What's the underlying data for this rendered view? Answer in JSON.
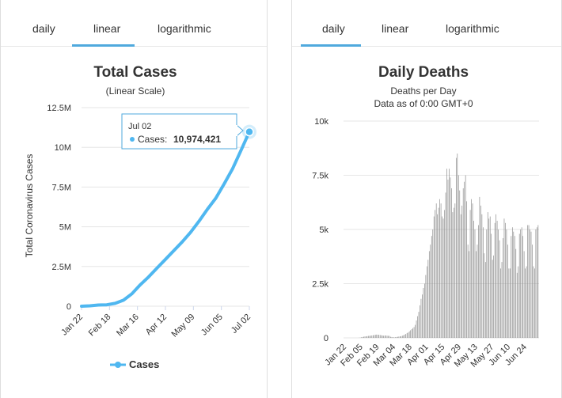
{
  "tabs_left": {
    "daily": "daily",
    "linear": "linear",
    "logarithmic": "logarithmic",
    "active": "linear"
  },
  "tabs_right": {
    "daily": "daily",
    "linear": "linear",
    "logarithmic": "logarithmic",
    "active": "daily"
  },
  "colors": {
    "accent": "#4fa9dd",
    "series_line": "#4fb7f0",
    "bars": "#8a8a8a",
    "grid": "#e6e6e6"
  },
  "chart_data": [
    {
      "type": "line",
      "title": "Total Cases",
      "subtitle": "(Linear Scale)",
      "ylabel": "Total Coronavirus Cases",
      "xlabel": "",
      "x_ticks": [
        "Jan 22",
        "Feb 18",
        "Mar 16",
        "Apr 12",
        "May 09",
        "Jun 05",
        "Jul 02"
      ],
      "y_ticks": [
        "0",
        "2.5M",
        "5M",
        "7.5M",
        "10M",
        "12.5M"
      ],
      "ylim": [
        0,
        12500000
      ],
      "grid": true,
      "legend": {
        "position": "bottom",
        "entries": [
          "Cases"
        ]
      },
      "tooltip": {
        "date": "Jul 02",
        "label": "Cases:",
        "value": "10,974,421"
      },
      "series": [
        {
          "name": "Cases",
          "x": [
            "Jan 22",
            "Feb 04",
            "Feb 18",
            "Mar 02",
            "Mar 16",
            "Mar 23",
            "Mar 30",
            "Apr 06",
            "Apr 12",
            "Apr 19",
            "Apr 26",
            "May 03",
            "May 09",
            "May 16",
            "May 23",
            "May 30",
            "Jun 05",
            "Jun 12",
            "Jun 19",
            "Jun 26",
            "Jul 02"
          ],
          "values": [
            580,
            24500,
            75000,
            90000,
            181000,
            380000,
            780000,
            1350000,
            1850000,
            2400000,
            2950000,
            3500000,
            4050000,
            4650000,
            5350000,
            6100000,
            6800000,
            7700000,
            8650000,
            9800000,
            10974421
          ]
        }
      ]
    },
    {
      "type": "bar",
      "title": "Daily Deaths",
      "subtitle": "Deaths per Day",
      "subtitle2": "Data as of 0:00 GMT+0",
      "xlabel": "",
      "ylabel": "",
      "x_ticks": [
        "Jan 22",
        "Feb 05",
        "Feb 19",
        "Mar 04",
        "Mar 18",
        "Apr 01",
        "Apr 15",
        "Apr 29",
        "May 13",
        "May 27",
        "Jun 10",
        "Jun 24"
      ],
      "y_ticks": [
        "0",
        "2.5k",
        "5k",
        "7.5k",
        "10k"
      ],
      "ylim": [
        0,
        10000
      ],
      "grid": true,
      "start_date": "Jan 22",
      "values": [
        0,
        0,
        0,
        0,
        0,
        0,
        0,
        0,
        0,
        0,
        0,
        0,
        0,
        5,
        10,
        25,
        40,
        55,
        65,
        70,
        80,
        90,
        95,
        100,
        110,
        120,
        130,
        140,
        150,
        145,
        140,
        130,
        120,
        110,
        100,
        105,
        110,
        100,
        95,
        90,
        50,
        40,
        30,
        25,
        30,
        40,
        50,
        60,
        70,
        80,
        100,
        120,
        150,
        180,
        220,
        250,
        300,
        350,
        400,
        450,
        500,
        600,
        800,
        1000,
        1200,
        1500,
        1800,
        2000,
        2300,
        2500,
        2900,
        3300,
        3600,
        4000,
        4300,
        4700,
        5000,
        5600,
        5900,
        6200,
        5700,
        6000,
        6400,
        6200,
        5600,
        5500,
        5900,
        6700,
        7800,
        7300,
        7800,
        7400,
        6900,
        5800,
        6000,
        6200,
        8300,
        8500,
        7500,
        6800,
        5700,
        6100,
        6900,
        7200,
        7500,
        6300,
        4300,
        4000,
        5900,
        6400,
        6200,
        5400,
        5000,
        4000,
        4300,
        5200,
        6500,
        6100,
        5700,
        5100,
        3900,
        3500,
        5000,
        5800,
        5500,
        5600,
        4800,
        3600,
        3800,
        5300,
        5700,
        5400,
        5000,
        4500,
        3200,
        3500,
        4600,
        5500,
        5300,
        5000,
        4300,
        3200,
        3200,
        4700,
        5100,
        4900,
        4700,
        4100,
        3000,
        3300,
        4800,
        5000,
        5100,
        4700,
        4000,
        3200,
        3300,
        5200,
        5200,
        5000,
        4900,
        4300,
        3300,
        3200,
        5000,
        5100,
        5200
      ]
    }
  ]
}
